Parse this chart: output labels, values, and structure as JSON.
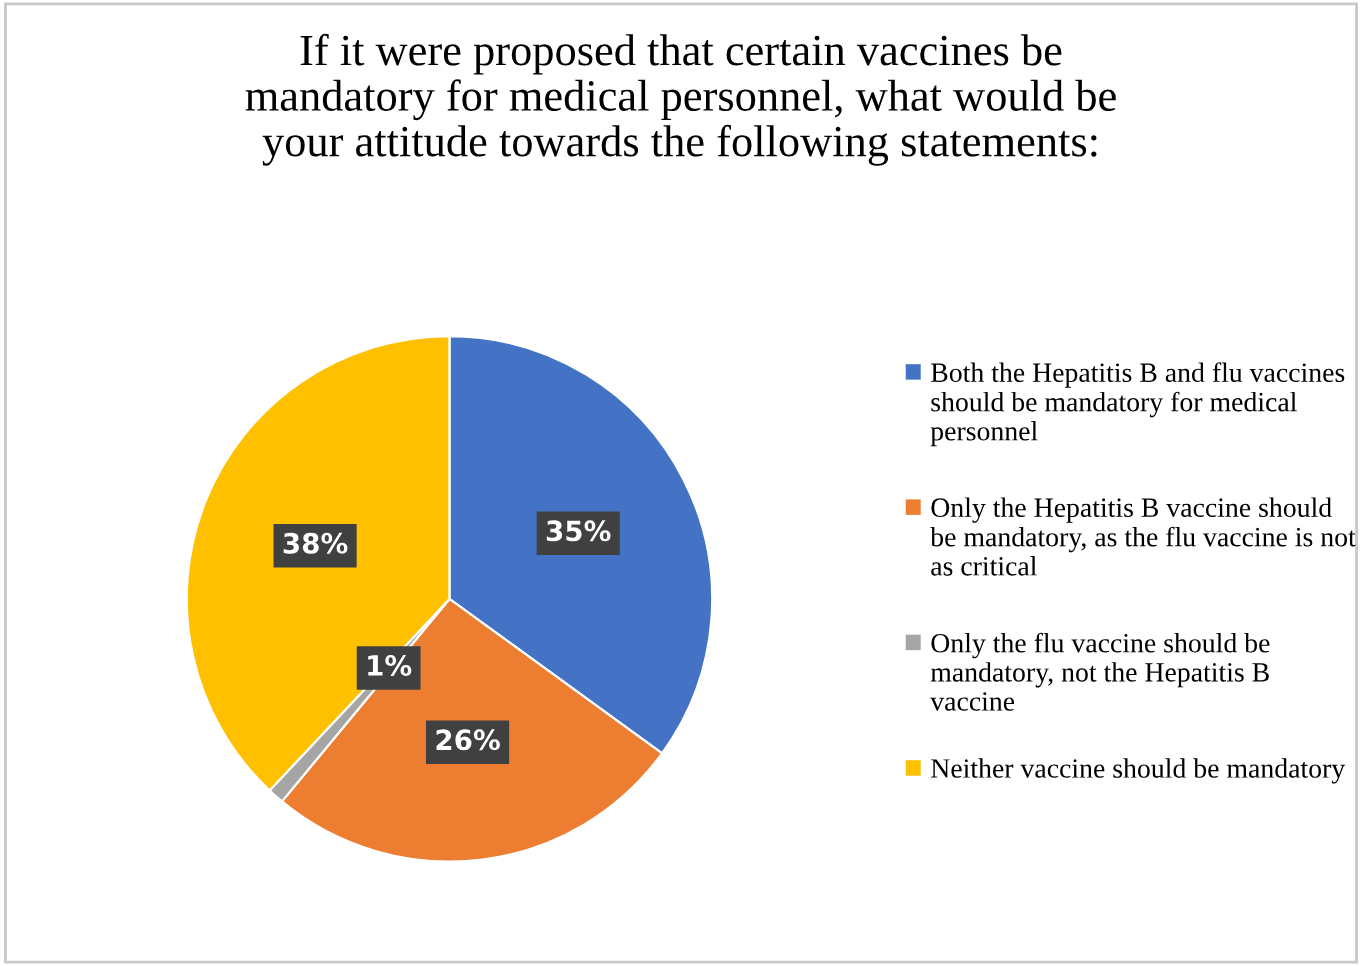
{
  "chart_data": {
    "type": "pie",
    "title": "If it were proposed that certain vaccines be\nmandatory for medical personnel, what would be\nyour attitude towards the following statements:",
    "categories": [
      "Both the Hepatitis B and flu vaccines should be mandatory for medical personnel",
      "Only the Hepatitis B vaccine should be mandatory, as the flu vaccine is not as critical",
      "Only the flu vaccine should be mandatory, not the Hepatitis B vaccine",
      "Neither vaccine should be mandatory"
    ],
    "values": [
      35,
      26,
      1,
      38
    ],
    "colors": [
      "#4472c4",
      "#ed7d31",
      "#a5a5a5",
      "#ffc000"
    ],
    "value_labels": [
      "35%",
      "26%",
      "1%",
      "38%"
    ],
    "legend": "right"
  }
}
